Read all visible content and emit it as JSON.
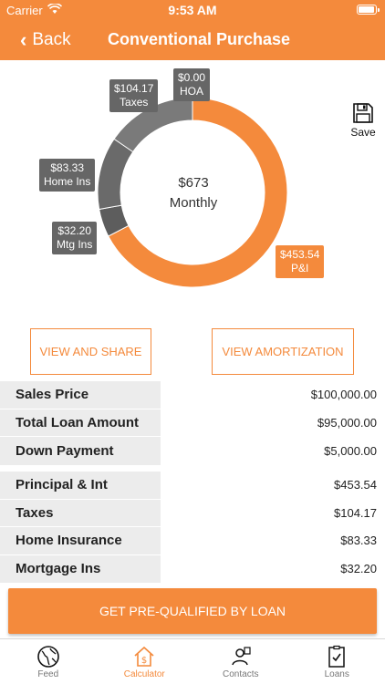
{
  "status": {
    "carrier": "Carrier",
    "time": "9:53 AM"
  },
  "nav": {
    "back_label": "Back",
    "title": "Conventional Purchase"
  },
  "chart_data": {
    "type": "pie",
    "center_value": "$673",
    "center_label": "Monthly",
    "slices": [
      {
        "label": "P&I",
        "value": 453.54,
        "value_text": "$453.54",
        "color": "#f48a3c"
      },
      {
        "label": "Mtg Ins",
        "value": 32.2,
        "value_text": "$32.20",
        "color": "#5d5d5d"
      },
      {
        "label": "Home Ins",
        "value": 83.33,
        "value_text": "$83.33",
        "color": "#6a6a6a"
      },
      {
        "label": "Taxes",
        "value": 104.17,
        "value_text": "$104.17",
        "color": "#7a7a7a"
      },
      {
        "label": "HOA",
        "value": 0.0,
        "value_text": "$0.00",
        "color": "#888888"
      }
    ]
  },
  "save": {
    "label": "Save",
    "icon": "floppy-disk-icon"
  },
  "actions": {
    "view_share": "VIEW AND SHARE",
    "view_amortization": "VIEW AMORTIZATION"
  },
  "loan_summary": [
    {
      "label": "Sales Price",
      "value": "$100,000.00"
    },
    {
      "label": "Total Loan Amount",
      "value": "$95,000.00"
    },
    {
      "label": "Down Payment",
      "value": "$5,000.00"
    }
  ],
  "payment_breakdown": [
    {
      "label": "Principal & Int",
      "value": "$453.54"
    },
    {
      "label": "Taxes",
      "value": "$104.17"
    },
    {
      "label": "Home Insurance",
      "value": "$83.33"
    },
    {
      "label": "Mortgage Ins",
      "value": "$32.20"
    }
  ],
  "cta": {
    "label": "GET PRE-QUALIFIED BY LOAN"
  },
  "tabs": [
    {
      "label": "Feed",
      "icon": "globe-icon"
    },
    {
      "label": "Calculator",
      "icon": "house-dollar-icon",
      "active": true
    },
    {
      "label": "Contacts",
      "icon": "contacts-icon"
    },
    {
      "label": "Loans",
      "icon": "checklist-icon"
    }
  ],
  "colors": {
    "accent": "#f48a3c",
    "slice_gray": "#6a6a6a"
  }
}
